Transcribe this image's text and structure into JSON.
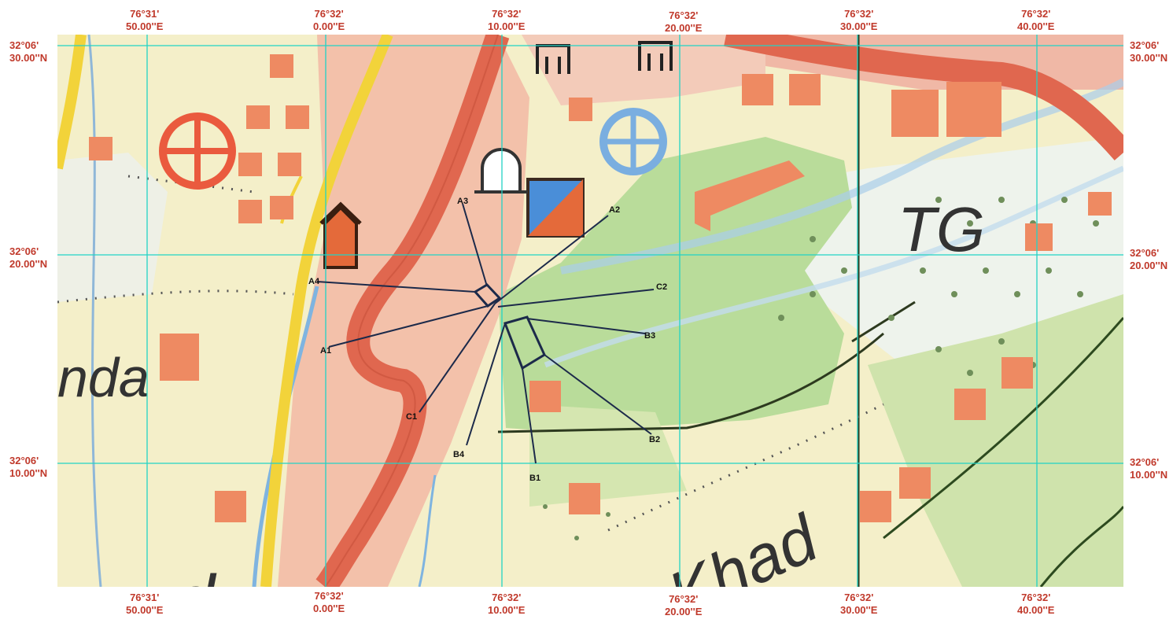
{
  "top_labels": [
    {
      "deg": "76°31'",
      "sec": "50.00''E"
    },
    {
      "deg": "76°32'",
      "sec": "0.00''E"
    },
    {
      "deg": "76°32'",
      "sec": "10.00''E"
    },
    {
      "deg": "76°32'",
      "sec": "20.00''E"
    },
    {
      "deg": "76°32'",
      "sec": "30.00''E"
    },
    {
      "deg": "76°32'",
      "sec": "40.00''E"
    }
  ],
  "bottom_labels": [
    {
      "deg": "76°31'",
      "sec": "50.00''E"
    },
    {
      "deg": "76°32'",
      "sec": "0.00''E"
    },
    {
      "deg": "76°32'",
      "sec": "10.00''E"
    },
    {
      "deg": "76°32'",
      "sec": "20.00''E"
    },
    {
      "deg": "76°32'",
      "sec": "30.00''E"
    },
    {
      "deg": "76°32'",
      "sec": "40.00''E"
    }
  ],
  "left_labels": [
    {
      "deg": "32°06'",
      "sec": "30.00''N"
    },
    {
      "deg": "32°06'",
      "sec": "20.00''N"
    },
    {
      "deg": "32°06'",
      "sec": "10.00''N"
    }
  ],
  "right_labels": [
    {
      "deg": "32°06'",
      "sec": "30.00''N"
    },
    {
      "deg": "32°06'",
      "sec": "20.00''N"
    },
    {
      "deg": "32°06'",
      "sec": "10.00''N"
    }
  ],
  "map_text": {
    "tg": "TG",
    "nda": "nda",
    "khad": "Khad",
    "d": "d"
  },
  "points": {
    "a1": "A1",
    "a2": "A2",
    "a3": "A3",
    "a4": "A4",
    "b1": "B1",
    "b2": "B2",
    "b3": "B3",
    "b4": "B4",
    "c1": "C1",
    "c2": "C2"
  },
  "colors": {
    "label_red": "#c0392b",
    "grid_cyan": "#22d3c5",
    "road_red": "#e0674f",
    "yellow_road": "#f2d33a",
    "forest_green": "#b9dc9a",
    "base_cream": "#f4efc9",
    "survey_line": "#1c2a4a"
  }
}
